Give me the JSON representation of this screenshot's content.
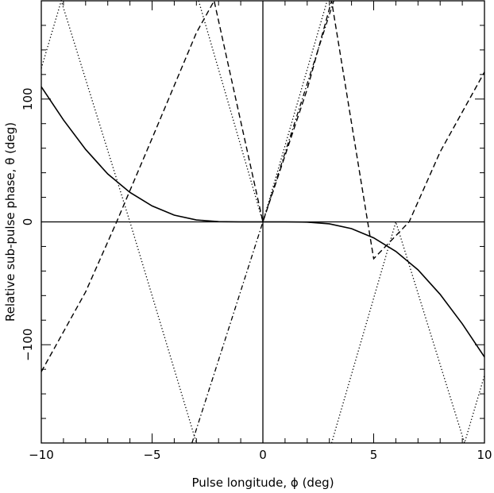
{
  "chart_data": {
    "type": "line",
    "xlabel": "Pulse longitude, ϕ (deg)",
    "ylabel": "Relative sub-pulse phase, θ (deg)",
    "xlim": [
      -10,
      10
    ],
    "ylim": [
      -180,
      180
    ],
    "x_ticks": [
      -10,
      -5,
      0,
      5,
      10
    ],
    "y_ticks": [
      -100,
      0,
      100
    ],
    "x_tick_labels": [
      "−10",
      "−5",
      "0",
      "5",
      "10"
    ],
    "y_tick_labels": [
      "−100",
      "0",
      "100"
    ],
    "zero_lines": true,
    "grid": false,
    "legend": "none",
    "series": [
      {
        "style": "solid",
        "x": [
          -10,
          -9,
          -8,
          -7,
          -6,
          -5,
          -4,
          -3,
          -2,
          -1,
          0,
          1,
          2,
          3,
          4,
          5,
          6,
          7,
          8,
          9,
          10
        ],
        "y": [
          110,
          83,
          59,
          39,
          24,
          13,
          5.5,
          1.6,
          0.2,
          0,
          0,
          0,
          -0.2,
          -1.6,
          -5.5,
          -13,
          -24,
          -39,
          -59,
          -83,
          -110
        ]
      },
      {
        "style": "dashed",
        "x": [
          -10,
          -8,
          -6.6,
          -5,
          -3,
          -2.2,
          0,
          2,
          3.1,
          5,
          6.6,
          8,
          10
        ],
        "y": [
          -122,
          -57,
          0,
          68,
          154,
          180,
          0,
          108,
          180,
          -30,
          0,
          57,
          122
        ]
      },
      {
        "style": "dash-dot",
        "x": [
          -3.2,
          0,
          3.2
        ],
        "y": [
          -180,
          0,
          180
        ]
      },
      {
        "style": "dotted",
        "x": [
          -10,
          -9.1,
          -6,
          -3,
          -2.9,
          0,
          2.9,
          3.1,
          6,
          9.1,
          10
        ],
        "y": [
          125,
          180,
          0,
          -180,
          180,
          0,
          180,
          -180,
          0,
          -180,
          -125
        ]
      }
    ]
  }
}
